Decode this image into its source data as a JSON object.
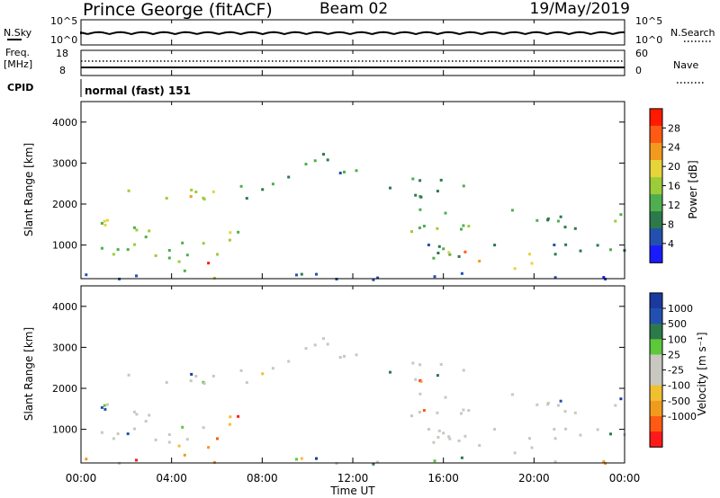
{
  "header": {
    "station": "Prince George (fitACF)",
    "beam": "Beam 02",
    "date": "19/May/2019"
  },
  "noise_panel": {
    "left_label": "N.Sky",
    "right_label": "N.Search",
    "y_top_left": "10^5",
    "y_bottom_left": "10^0",
    "y_top_right": "10^5",
    "y_bottom_right": "10^0"
  },
  "freq_panel": {
    "left_label_1": "Freq.",
    "left_label_2": "[MHz]",
    "right_label": "Nave",
    "y_top_left": "18",
    "y_bottom_left": "8",
    "y_top_right": "60",
    "y_bottom_right": "0"
  },
  "cpid": {
    "label": "CPID",
    "value": "normal (fast) 151"
  },
  "colors": {
    "power_scale": [
      "#1a1aff",
      "#2350b0",
      "#2c7a4a",
      "#4fae4f",
      "#9ccc3a",
      "#e6d43a",
      "#f29a1e",
      "#ff5a14",
      "#ff1a00"
    ],
    "velocity_scale": [
      "#ff1a1a",
      "#ff5a14",
      "#f29a1e",
      "#f0c030",
      "#c8c8c0",
      "#c8c8c0",
      "#5cc83a",
      "#2c7a4a",
      "#2350b0",
      "#1a3aa0"
    ],
    "ground_scatter": "#c8c8c0"
  },
  "chart_data": [
    {
      "type": "heatmap",
      "quantity": "Power",
      "xlabel": "",
      "ylabel": "Slant Range [km]",
      "x_ticks": [
        "00:00",
        "04:00",
        "08:00",
        "12:00",
        "16:00",
        "20:00",
        "00:00"
      ],
      "x_range_hours": [
        0,
        24
      ],
      "y_ticks": [
        "1000",
        "2000",
        "3000",
        "4000"
      ],
      "y_range_km": [
        180,
        4500
      ],
      "colorbar_label": "Power [dB]",
      "colorbar_ticks": [
        "4",
        "8",
        "12",
        "16",
        "20",
        "24",
        "28"
      ],
      "colorbar_range": [
        0,
        32
      ]
    },
    {
      "type": "heatmap",
      "quantity": "Velocity",
      "xlabel": "Time UT",
      "ylabel": "Slant Range [km]",
      "x_ticks": [
        "00:00",
        "04:00",
        "08:00",
        "12:00",
        "16:00",
        "20:00",
        "00:00"
      ],
      "x_range_hours": [
        0,
        24
      ],
      "y_ticks": [
        "1000",
        "2000",
        "3000",
        "4000"
      ],
      "y_range_km": [
        180,
        4500
      ],
      "colorbar_label": "Velocity [m s⁻¹]",
      "colorbar_ticks": [
        "1000",
        "500",
        "100",
        "25",
        "-25",
        "-100",
        "-500",
        "-1000"
      ]
    }
  ]
}
